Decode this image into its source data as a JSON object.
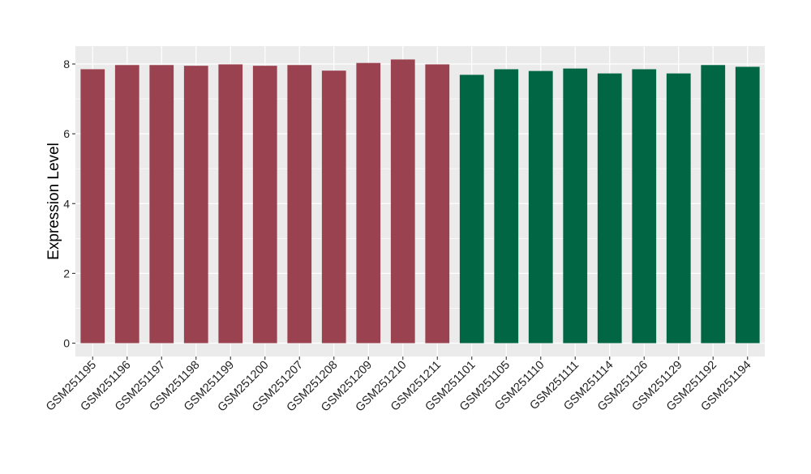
{
  "chart_data": {
    "type": "bar",
    "title": "",
    "xlabel": "",
    "ylabel": "Expression Level",
    "ylim": [
      0,
      8.25
    ],
    "yticks": [
      0,
      2,
      4,
      6,
      8
    ],
    "grid": true,
    "legend": "none",
    "background_color": "#EBEBEB",
    "grid_color": "#FFFFFF",
    "colors": {
      "group_1": "#9B4250",
      "group_2": "#006644"
    },
    "categories": [
      "GSM251195",
      "GSM251196",
      "GSM251197",
      "GSM251198",
      "GSM251199",
      "GSM251200",
      "GSM251207",
      "GSM251208",
      "GSM251209",
      "GSM251210",
      "GSM251211",
      "GSM251101",
      "GSM251105",
      "GSM251110",
      "GSM251111",
      "GSM251114",
      "GSM251126",
      "GSM251129",
      "GSM251192",
      "GSM251194"
    ],
    "values": [
      7.85,
      7.97,
      7.97,
      7.95,
      7.99,
      7.95,
      7.97,
      7.81,
      8.03,
      8.13,
      7.99,
      7.69,
      7.85,
      7.8,
      7.87,
      7.73,
      7.85,
      7.73,
      7.97,
      7.92
    ],
    "bar_groups": [
      "group_1",
      "group_1",
      "group_1",
      "group_1",
      "group_1",
      "group_1",
      "group_1",
      "group_1",
      "group_1",
      "group_1",
      "group_1",
      "group_2",
      "group_2",
      "group_2",
      "group_2",
      "group_2",
      "group_2",
      "group_2",
      "group_2",
      "group_2"
    ]
  }
}
